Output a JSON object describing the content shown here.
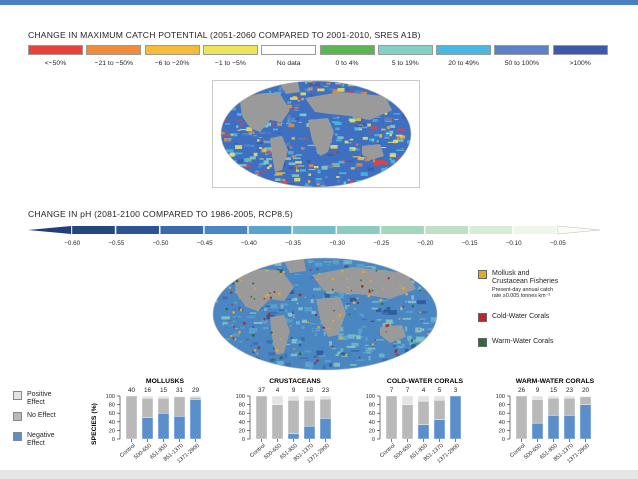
{
  "header": {
    "catch_title": "CHANGE IN MAXIMUM CATCH POTENTIAL (2051-2060 COMPARED TO 2001-2010, SRES A1B)",
    "ph_title": "CHANGE IN pH (2081-2100 COMPARED TO 1986-2005, RCP8.5)"
  },
  "catch_legend": [
    {
      "label": "<−50%",
      "color": "#e8423a"
    },
    {
      "label": "−21 to −50%",
      "color": "#ef8b3a"
    },
    {
      "label": "−6 to −20%",
      "color": "#f3bd3a"
    },
    {
      "label": "−1 to −5%",
      "color": "#ede45e"
    },
    {
      "label": "No data",
      "color": "#ffffff"
    },
    {
      "label": "0 to 4%",
      "color": "#5bb552"
    },
    {
      "label": "5 to 19%",
      "color": "#86cfc4"
    },
    {
      "label": "20 to 49%",
      "color": "#4bb8e2"
    },
    {
      "label": "50 to 100%",
      "color": "#5a82c4"
    },
    {
      "label": ">100%",
      "color": "#3d5aa8"
    }
  ],
  "ph_legend": {
    "labels": [
      "−0.60",
      "−0.55",
      "−0.50",
      "−0.45",
      "−0.40",
      "−0.35",
      "−0.30",
      "−0.25",
      "−0.20",
      "−0.15",
      "−0.10",
      "−0.05"
    ],
    "colors": [
      "#1f3e7a",
      "#24477f",
      "#2c5493",
      "#3b69ab",
      "#4a86c2",
      "#5aa3cf",
      "#74bccb",
      "#8ecbbf",
      "#a5d5bd",
      "#bfe0c6",
      "#d8ebd6",
      "#eef5ea",
      "#fbfdf4"
    ]
  },
  "fisheries_legend": [
    {
      "label": "Mollusk and",
      "label2": "Crustacean Fisheries",
      "sub1": "Present-day annual catch",
      "sub2": "rate ≥0.005 tonnes km⁻²",
      "color": "#e3a92b"
    },
    {
      "label": "Cold-Water Corals",
      "color": "#b1282d"
    },
    {
      "label": "Warm-Water Corals",
      "color": "#2f6b3a"
    }
  ],
  "effect_legend": [
    {
      "label": "Positive",
      "label2": "Effect",
      "color": "#e4e4e4"
    },
    {
      "label": "No Effect",
      "label2": "",
      "color": "#b9b9b9"
    },
    {
      "label": "Negative",
      "label2": "Effect",
      "color": "#5b8fcb"
    }
  ],
  "chart_data": [
    {
      "type": "bar",
      "title": "MOLLUSKS",
      "ylabel": "SPECIES (%)",
      "ylim": [
        0,
        100
      ],
      "yticks": [
        "0",
        "20",
        "40",
        "60",
        "80",
        "100"
      ],
      "categories": [
        "Control",
        "500-650",
        "651-850",
        "851-1370",
        "1371-2900"
      ],
      "counts": [
        "40",
        "16",
        "15",
        "31",
        "29"
      ],
      "series": [
        {
          "name": "Negative Effect",
          "values": [
            0,
            50,
            60,
            53,
            92
          ]
        },
        {
          "name": "No Effect",
          "values": [
            100,
            45,
            35,
            45,
            5
          ]
        },
        {
          "name": "Positive Effect",
          "values": [
            0,
            5,
            5,
            2,
            3
          ]
        }
      ]
    },
    {
      "type": "bar",
      "title": "CRUSTACEANS",
      "ylim": [
        0,
        100
      ],
      "yticks": [
        "0",
        "20",
        "40",
        "60",
        "80",
        "100"
      ],
      "categories": [
        "Control",
        "500-650",
        "651-850",
        "851-1370",
        "1371-2900"
      ],
      "counts": [
        "37",
        "4",
        "9",
        "18",
        "23"
      ],
      "series": [
        {
          "name": "Negative Effect",
          "values": [
            0,
            0,
            12,
            30,
            48
          ]
        },
        {
          "name": "No Effect",
          "values": [
            100,
            80,
            78,
            60,
            45
          ]
        },
        {
          "name": "Positive Effect",
          "values": [
            0,
            20,
            10,
            10,
            7
          ]
        }
      ]
    },
    {
      "type": "bar",
      "title": "COLD-WATER CORALS",
      "ylim": [
        0,
        100
      ],
      "yticks": [
        "0",
        "20",
        "40",
        "60",
        "80",
        "100"
      ],
      "categories": [
        "Control",
        "500-650",
        "651-850",
        "851-1370",
        "1371-2900"
      ],
      "counts": [
        "7",
        "7",
        "4",
        "5",
        "3"
      ],
      "series": [
        {
          "name": "Negative Effect",
          "values": [
            0,
            0,
            33,
            45,
            100
          ]
        },
        {
          "name": "No Effect",
          "values": [
            100,
            80,
            55,
            45,
            0
          ]
        },
        {
          "name": "Positive Effect",
          "values": [
            0,
            20,
            12,
            10,
            0
          ]
        }
      ]
    },
    {
      "type": "bar",
      "title": "WARM-WATER CORALS",
      "ylim": [
        0,
        100
      ],
      "yticks": [
        "0",
        "20",
        "40",
        "60",
        "80",
        "100"
      ],
      "categories": [
        "Control",
        "500-650",
        "651-850",
        "851-1370",
        "1371-2900"
      ],
      "counts": [
        "26",
        "9",
        "15",
        "23",
        "20"
      ],
      "series": [
        {
          "name": "Negative Effect",
          "values": [
            0,
            37,
            55,
            55,
            80
          ]
        },
        {
          "name": "No Effect",
          "values": [
            100,
            55,
            40,
            40,
            18
          ]
        },
        {
          "name": "Positive Effect",
          "values": [
            0,
            8,
            5,
            5,
            2
          ]
        }
      ]
    }
  ]
}
